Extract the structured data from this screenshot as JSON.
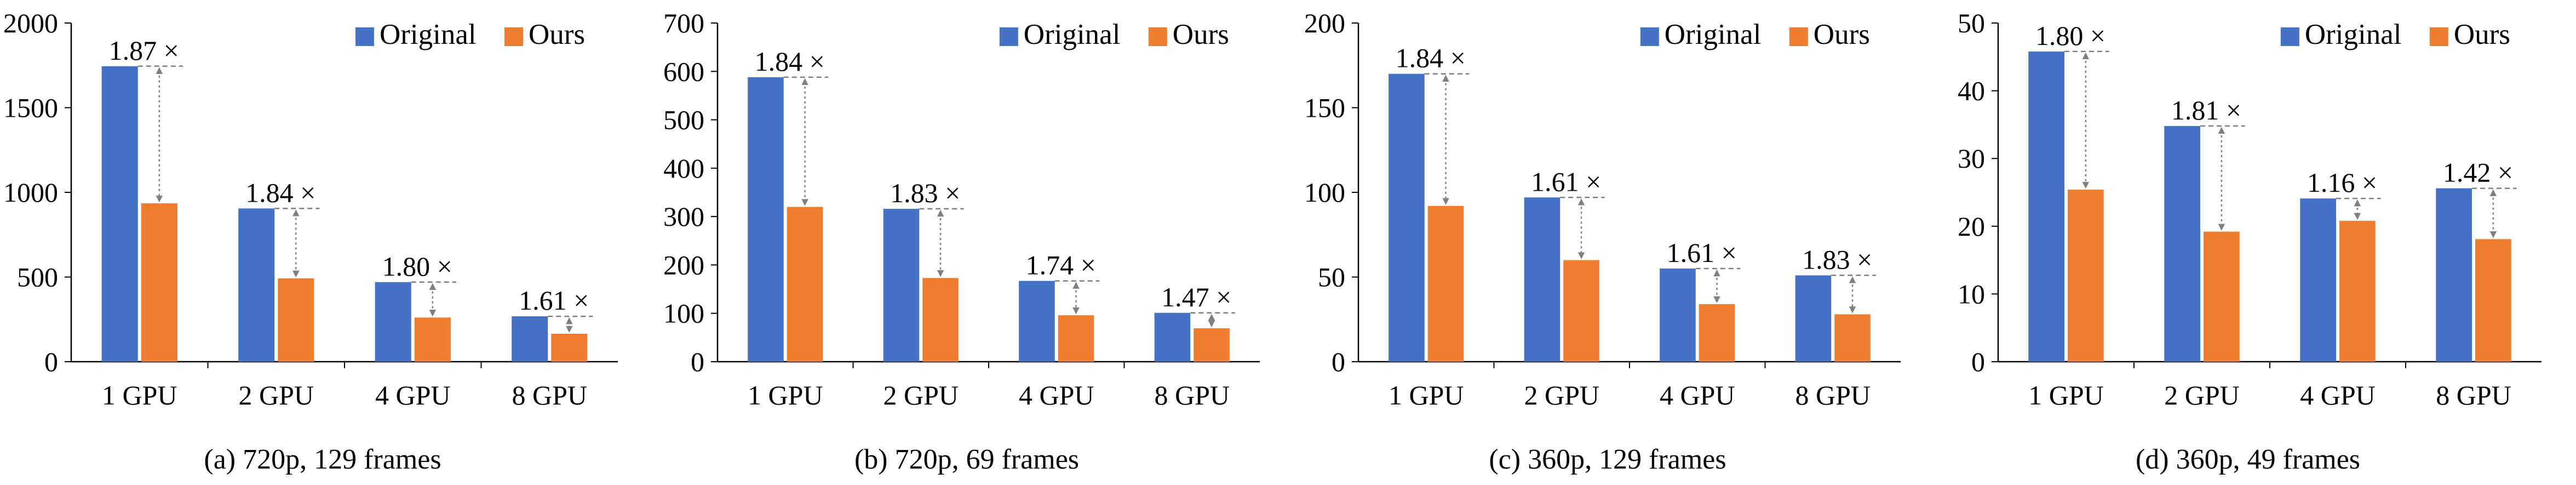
{
  "colors": {
    "original": "#4472C4",
    "ours": "#ED7D31",
    "arrow": "#7F7F7F",
    "axis": "#000000"
  },
  "chart_data": [
    {
      "type": "bar",
      "caption": "(a)  720p, 129 frames",
      "categories": [
        "1 GPU",
        "2 GPU",
        "4 GPU",
        "8 GPU"
      ],
      "series": [
        {
          "name": "Original",
          "values": [
            1745,
            905,
            470,
            268
          ]
        },
        {
          "name": "Ours",
          "values": [
            935,
            492,
            261,
            165
          ]
        }
      ],
      "speedups": [
        "1.87 ×",
        "1.84 ×",
        "1.80 ×",
        "1.61 ×"
      ],
      "ylim": [
        0,
        2000
      ],
      "yticks": [
        "0",
        "500",
        "1000",
        "1500",
        "2000"
      ],
      "legend": "top-right",
      "grid": false
    },
    {
      "type": "bar",
      "caption": "(b)  720p, 69 frames",
      "categories": [
        "1 GPU",
        "2 GPU",
        "4 GPU",
        "8 GPU"
      ],
      "series": [
        {
          "name": "Original",
          "values": [
            588,
            316,
            167,
            101
          ]
        },
        {
          "name": "Ours",
          "values": [
            320,
            173,
            96,
            69
          ]
        }
      ],
      "speedups": [
        "1.84 ×",
        "1.83 ×",
        "1.74 ×",
        "1.47 ×"
      ],
      "ylim": [
        0,
        700
      ],
      "yticks": [
        "0",
        "100",
        "200",
        "300",
        "400",
        "500",
        "600",
        "700"
      ],
      "legend": "top-right",
      "grid": false
    },
    {
      "type": "bar",
      "caption": "(c)  360p, 129 frames",
      "categories": [
        "1 GPU",
        "2 GPU",
        "4 GPU",
        "8 GPU"
      ],
      "series": [
        {
          "name": "Original",
          "values": [
            170,
            97,
            55,
            51
          ]
        },
        {
          "name": "Ours",
          "values": [
            92,
            60,
            34,
            28
          ]
        }
      ],
      "speedups": [
        "1.84 ×",
        "1.61 ×",
        "1.61 ×",
        "1.83 ×"
      ],
      "ylim": [
        0,
        200
      ],
      "yticks": [
        "0",
        "50",
        "100",
        "150",
        "200"
      ],
      "legend": "top-right",
      "grid": false
    },
    {
      "type": "bar",
      "caption": "(d)  360p, 49 frames",
      "categories": [
        "1 GPU",
        "2 GPU",
        "4 GPU",
        "8 GPU"
      ],
      "series": [
        {
          "name": "Original",
          "values": [
            45.8,
            34.8,
            24.1,
            25.6
          ]
        },
        {
          "name": "Ours",
          "values": [
            25.4,
            19.2,
            20.8,
            18.1
          ]
        }
      ],
      "speedups": [
        "1.80 ×",
        "1.81 ×",
        "1.16 ×",
        "1.42 ×"
      ],
      "ylim": [
        0,
        50
      ],
      "yticks": [
        "0",
        "10",
        "20",
        "30",
        "40",
        "50"
      ],
      "legend": "top-right",
      "grid": false
    }
  ]
}
